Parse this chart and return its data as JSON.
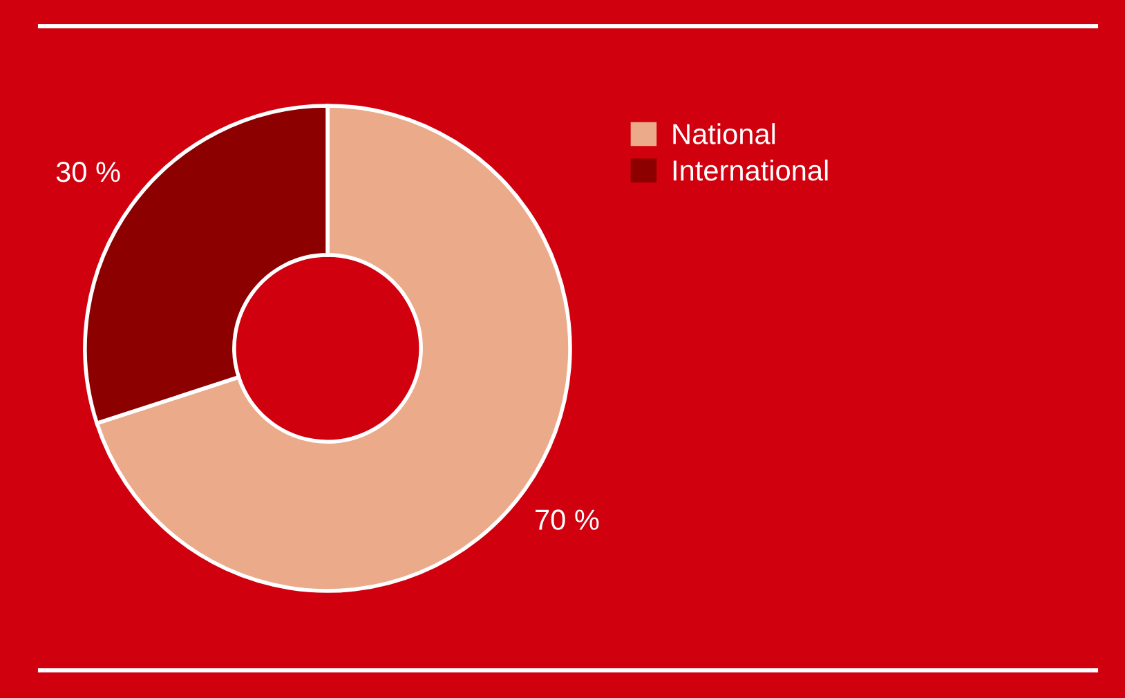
{
  "chart_data": {
    "type": "donut",
    "categories": [
      "National",
      "International"
    ],
    "values": [
      70,
      30
    ],
    "colors": [
      "#ebaa8a",
      "#8c0000"
    ],
    "value_labels": [
      "70 %",
      "30 %"
    ],
    "legend": "top right"
  }
}
